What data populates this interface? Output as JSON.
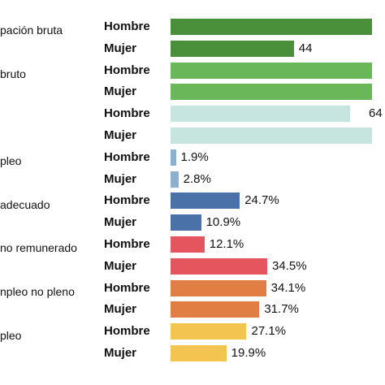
{
  "chart_data": {
    "type": "bar",
    "orientation": "horizontal",
    "categories": [
      {
        "label": "pación bruta",
        "rows": [
          {
            "sex": "Hombre",
            "value": 72.0,
            "value_label": "",
            "color": "#4a8f3a"
          },
          {
            "sex": "Mujer",
            "value": 44.0,
            "value_label": "44",
            "color": "#4a8f3a"
          }
        ]
      },
      {
        "label": "bruto",
        "rows": [
          {
            "sex": "Hombre",
            "value": 72.0,
            "value_label": "",
            "color": "#6ab75a"
          },
          {
            "sex": "Mujer",
            "value": 72.0,
            "value_label": "",
            "color": "#6ab75a"
          }
        ]
      },
      {
        "label": "",
        "rows": [
          {
            "sex": "Hombre",
            "value": 64.0,
            "value_label": "64",
            "color": "#c7e5df"
          },
          {
            "sex": "Mujer",
            "value": 72.0,
            "value_label": "",
            "color": "#c7e5df"
          }
        ]
      },
      {
        "label": "pleo",
        "rows": [
          {
            "sex": "Hombre",
            "value": 1.9,
            "value_label": "1.9%",
            "color": "#8bb0d0"
          },
          {
            "sex": "Mujer",
            "value": 2.8,
            "value_label": "2.8%",
            "color": "#8bb0d0"
          }
        ]
      },
      {
        "label": "adecuado",
        "rows": [
          {
            "sex": "Hombre",
            "value": 24.7,
            "value_label": "24.7%",
            "color": "#4a72a8"
          },
          {
            "sex": "Mujer",
            "value": 10.9,
            "value_label": "10.9%",
            "color": "#4a72a8"
          }
        ]
      },
      {
        "label": "no remunerado",
        "rows": [
          {
            "sex": "Hombre",
            "value": 12.1,
            "value_label": "12.1%",
            "color": "#e5555e"
          },
          {
            "sex": "Mujer",
            "value": 34.5,
            "value_label": "34.5%",
            "color": "#e5555e"
          }
        ]
      },
      {
        "label": "npleo no pleno",
        "rows": [
          {
            "sex": "Hombre",
            "value": 34.1,
            "value_label": "34.1%",
            "color": "#e07e43"
          },
          {
            "sex": "Mujer",
            "value": 31.7,
            "value_label": "31.7%",
            "color": "#e07e43"
          }
        ]
      },
      {
        "label": "pleo",
        "rows": [
          {
            "sex": "Hombre",
            "value": 27.1,
            "value_label": "27.1%",
            "color": "#f3c550"
          },
          {
            "sex": "Mujer",
            "value": 19.9,
            "value_label": "19.9%",
            "color": "#f3c550"
          }
        ]
      }
    ]
  }
}
